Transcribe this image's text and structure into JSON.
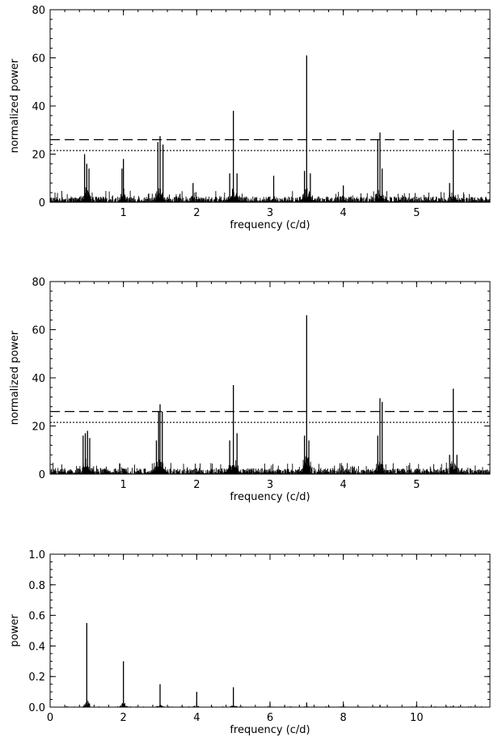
{
  "chart_data": [
    {
      "type": "line",
      "xlabel": "frequency (c/d)",
      "ylabel": "normalized power",
      "xlim": [
        0,
        6
      ],
      "ylim": [
        0,
        80
      ],
      "xticks": [
        1,
        2,
        3,
        4,
        5
      ],
      "yticks": [
        0,
        20,
        40,
        60,
        80
      ],
      "xtick_labels": [
        "1",
        "2",
        "3",
        "4",
        "5"
      ],
      "ytick_labels": [
        "0",
        "20",
        "40",
        "60",
        "80"
      ],
      "noise_level": 4,
      "peaks": [
        {
          "x": 0.47,
          "y": 20
        },
        {
          "x": 0.5,
          "y": 16
        },
        {
          "x": 0.53,
          "y": 14
        },
        {
          "x": 1.0,
          "y": 18
        },
        {
          "x": 0.98,
          "y": 14
        },
        {
          "x": 1.47,
          "y": 25
        },
        {
          "x": 1.5,
          "y": 27.5
        },
        {
          "x": 1.54,
          "y": 24
        },
        {
          "x": 1.95,
          "y": 8
        },
        {
          "x": 2.45,
          "y": 12
        },
        {
          "x": 2.5,
          "y": 38
        },
        {
          "x": 2.55,
          "y": 12
        },
        {
          "x": 3.05,
          "y": 11
        },
        {
          "x": 3.47,
          "y": 13
        },
        {
          "x": 3.5,
          "y": 61
        },
        {
          "x": 3.55,
          "y": 12
        },
        {
          "x": 4.0,
          "y": 7
        },
        {
          "x": 4.47,
          "y": 26
        },
        {
          "x": 4.5,
          "y": 29
        },
        {
          "x": 4.53,
          "y": 14
        },
        {
          "x": 5.5,
          "y": 30
        },
        {
          "x": 5.45,
          "y": 8
        }
      ],
      "thresholds": [
        {
          "y": 26,
          "style": "dashed"
        },
        {
          "y": 21.5,
          "style": "dotted"
        }
      ]
    },
    {
      "type": "line",
      "xlabel": "frequency (c/d)",
      "ylabel": "normalized power",
      "xlim": [
        0,
        6
      ],
      "ylim": [
        0,
        80
      ],
      "xticks": [
        1,
        2,
        3,
        4,
        5
      ],
      "yticks": [
        0,
        20,
        40,
        60,
        80
      ],
      "xtick_labels": [
        "1",
        "2",
        "3",
        "4",
        "5"
      ],
      "ytick_labels": [
        "0",
        "20",
        "40",
        "60",
        "80"
      ],
      "noise_level": 4,
      "peaks": [
        {
          "x": 0.45,
          "y": 16
        },
        {
          "x": 0.48,
          "y": 17
        },
        {
          "x": 0.51,
          "y": 18
        },
        {
          "x": 0.54,
          "y": 15
        },
        {
          "x": 1.45,
          "y": 14
        },
        {
          "x": 1.48,
          "y": 26
        },
        {
          "x": 1.5,
          "y": 29
        },
        {
          "x": 1.53,
          "y": 26
        },
        {
          "x": 2.45,
          "y": 14
        },
        {
          "x": 2.5,
          "y": 37
        },
        {
          "x": 2.55,
          "y": 17
        },
        {
          "x": 3.47,
          "y": 16
        },
        {
          "x": 3.5,
          "y": 66
        },
        {
          "x": 3.53,
          "y": 14
        },
        {
          "x": 4.47,
          "y": 16
        },
        {
          "x": 4.5,
          "y": 31.5
        },
        {
          "x": 4.53,
          "y": 30
        },
        {
          "x": 5.45,
          "y": 8
        },
        {
          "x": 5.5,
          "y": 35.5
        },
        {
          "x": 5.55,
          "y": 8
        }
      ],
      "thresholds": [
        {
          "y": 26,
          "style": "dashed"
        },
        {
          "y": 21.5,
          "style": "dotted"
        }
      ]
    },
    {
      "type": "line",
      "xlabel": "frequency (c/d)",
      "ylabel": "power",
      "xlim": [
        0,
        12
      ],
      "ylim": [
        0,
        1.0
      ],
      "xticks": [
        0,
        2,
        4,
        6,
        8,
        10
      ],
      "yticks": [
        0,
        0.2,
        0.4,
        0.6,
        0.8,
        1.0
      ],
      "xtick_labels": [
        "0",
        "2",
        "4",
        "6",
        "8",
        "10"
      ],
      "ytick_labels": [
        "0.0",
        "0.2",
        "0.4",
        "0.6",
        "0.8",
        "1.0"
      ],
      "noise_level": 0.005,
      "peaks": [
        {
          "x": 1,
          "y": 0.55
        },
        {
          "x": 2,
          "y": 0.3
        },
        {
          "x": 3,
          "y": 0.15
        },
        {
          "x": 4,
          "y": 0.1
        },
        {
          "x": 5,
          "y": 0.13
        },
        {
          "x": 6,
          "y": 0.025
        },
        {
          "x": 7,
          "y": 0.03
        },
        {
          "x": 8,
          "y": 0.02
        },
        {
          "x": 9,
          "y": 0.015
        },
        {
          "x": 10,
          "y": 0.01
        },
        {
          "x": 11,
          "y": 0.01
        }
      ],
      "thresholds": []
    }
  ]
}
